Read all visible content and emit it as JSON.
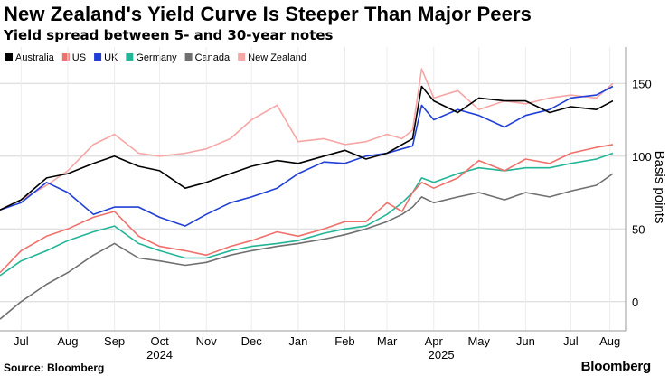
{
  "title": "New Zealand's Yield Curve Is Steeper Than Major Peers",
  "subtitle": "Yield spread between 5- and 30-year notes",
  "source": "Source: Bloomberg",
  "brand": "Bloomberg",
  "chart_data": {
    "type": "line",
    "ylabel": "Basis points",
    "ylim": [
      -20,
      175
    ],
    "yticks": [
      0,
      50,
      100,
      150
    ],
    "xlim": [
      "2024-07-01",
      "2025-08-15"
    ],
    "month_ticks": [
      {
        "label": "Jul",
        "date": "2024-07-15"
      },
      {
        "label": "Aug",
        "date": "2024-08-15"
      },
      {
        "label": "Sep",
        "date": "2024-09-15"
      },
      {
        "label": "Oct",
        "date": "2024-10-15"
      },
      {
        "label": "Nov",
        "date": "2024-11-15"
      },
      {
        "label": "Dec",
        "date": "2024-12-15"
      },
      {
        "label": "Jan",
        "date": "2025-01-15"
      },
      {
        "label": "Feb",
        "date": "2025-02-15"
      },
      {
        "label": "Mar",
        "date": "2025-03-15"
      },
      {
        "label": "Apr",
        "date": "2025-04-15"
      },
      {
        "label": "May",
        "date": "2025-05-15"
      },
      {
        "label": "Jun",
        "date": "2025-06-15"
      },
      {
        "label": "Jul",
        "date": "2025-07-15"
      },
      {
        "label": "Aug",
        "date": "2025-08-10"
      }
    ],
    "year_labels": [
      {
        "label": "2024",
        "date": "2024-10-15"
      },
      {
        "label": "2025",
        "date": "2025-04-20"
      }
    ],
    "legend_position": "top-left",
    "grid": true,
    "series": [
      {
        "name": "Australia",
        "color": "#000000",
        "x": [
          "2024-07-01",
          "2024-07-15",
          "2024-08-01",
          "2024-08-15",
          "2024-09-01",
          "2024-09-15",
          "2024-10-01",
          "2024-10-15",
          "2024-11-01",
          "2024-11-15",
          "2024-12-01",
          "2024-12-15",
          "2025-01-01",
          "2025-01-15",
          "2025-02-01",
          "2025-02-15",
          "2025-03-01",
          "2025-03-15",
          "2025-03-25",
          "2025-04-01",
          "2025-04-07",
          "2025-04-15",
          "2025-05-01",
          "2025-05-15",
          "2025-06-01",
          "2025-06-15",
          "2025-07-01",
          "2025-07-15",
          "2025-08-01",
          "2025-08-12"
        ],
        "values": [
          63,
          70,
          85,
          88,
          95,
          100,
          93,
          90,
          78,
          82,
          88,
          93,
          97,
          95,
          100,
          104,
          98,
          102,
          108,
          112,
          148,
          138,
          130,
          140,
          138,
          138,
          130,
          134,
          132,
          138
        ]
      },
      {
        "name": "US",
        "color": "#f0706b",
        "x": [
          "2024-07-01",
          "2024-07-15",
          "2024-08-01",
          "2024-08-15",
          "2024-09-01",
          "2024-09-15",
          "2024-10-01",
          "2024-10-15",
          "2024-11-01",
          "2024-11-15",
          "2024-12-01",
          "2024-12-15",
          "2025-01-01",
          "2025-01-15",
          "2025-02-01",
          "2025-02-15",
          "2025-03-01",
          "2025-03-15",
          "2025-03-25",
          "2025-04-01",
          "2025-04-07",
          "2025-04-15",
          "2025-05-01",
          "2025-05-15",
          "2025-06-01",
          "2025-06-15",
          "2025-07-01",
          "2025-07-15",
          "2025-08-01",
          "2025-08-12"
        ],
        "values": [
          20,
          35,
          45,
          50,
          58,
          62,
          45,
          38,
          35,
          32,
          38,
          42,
          48,
          45,
          50,
          55,
          55,
          68,
          62,
          75,
          82,
          78,
          85,
          97,
          90,
          98,
          95,
          102,
          106,
          108
        ]
      },
      {
        "name": "UK",
        "color": "#1f3fd6",
        "x": [
          "2024-07-01",
          "2024-07-15",
          "2024-08-01",
          "2024-08-15",
          "2024-09-01",
          "2024-09-15",
          "2024-10-01",
          "2024-10-15",
          "2024-11-01",
          "2024-11-15",
          "2024-12-01",
          "2024-12-15",
          "2025-01-01",
          "2025-01-15",
          "2025-02-01",
          "2025-02-15",
          "2025-03-01",
          "2025-03-15",
          "2025-03-25",
          "2025-04-01",
          "2025-04-07",
          "2025-04-15",
          "2025-05-01",
          "2025-05-15",
          "2025-06-01",
          "2025-06-15",
          "2025-07-01",
          "2025-07-15",
          "2025-08-01",
          "2025-08-12"
        ],
        "values": [
          63,
          68,
          82,
          75,
          60,
          65,
          65,
          58,
          52,
          60,
          68,
          72,
          78,
          88,
          96,
          95,
          100,
          102,
          105,
          107,
          135,
          125,
          132,
          128,
          120,
          128,
          132,
          140,
          142,
          148
        ]
      },
      {
        "name": "Germany",
        "color": "#22b597",
        "x": [
          "2024-07-01",
          "2024-07-15",
          "2024-08-01",
          "2024-08-15",
          "2024-09-01",
          "2024-09-15",
          "2024-10-01",
          "2024-10-15",
          "2024-11-01",
          "2024-11-15",
          "2024-12-01",
          "2024-12-15",
          "2025-01-01",
          "2025-01-15",
          "2025-02-01",
          "2025-02-15",
          "2025-03-01",
          "2025-03-15",
          "2025-03-25",
          "2025-04-01",
          "2025-04-07",
          "2025-04-15",
          "2025-05-01",
          "2025-05-15",
          "2025-06-01",
          "2025-06-15",
          "2025-07-01",
          "2025-07-15",
          "2025-08-01",
          "2025-08-12"
        ],
        "values": [
          18,
          28,
          35,
          42,
          48,
          52,
          40,
          35,
          30,
          30,
          35,
          38,
          40,
          42,
          47,
          50,
          52,
          60,
          68,
          75,
          85,
          82,
          88,
          92,
          90,
          92,
          92,
          95,
          98,
          102
        ]
      },
      {
        "name": "Canada",
        "color": "#707070",
        "x": [
          "2024-07-01",
          "2024-07-15",
          "2024-08-01",
          "2024-08-15",
          "2024-09-01",
          "2024-09-15",
          "2024-10-01",
          "2024-10-15",
          "2024-11-01",
          "2024-11-15",
          "2024-12-01",
          "2024-12-15",
          "2025-01-01",
          "2025-01-15",
          "2025-02-01",
          "2025-02-15",
          "2025-03-01",
          "2025-03-15",
          "2025-03-25",
          "2025-04-01",
          "2025-04-07",
          "2025-04-15",
          "2025-05-01",
          "2025-05-15",
          "2025-06-01",
          "2025-06-15",
          "2025-07-01",
          "2025-07-15",
          "2025-08-01",
          "2025-08-12"
        ],
        "values": [
          -12,
          0,
          12,
          20,
          32,
          40,
          30,
          28,
          25,
          27,
          32,
          35,
          38,
          40,
          43,
          46,
          50,
          55,
          60,
          65,
          72,
          68,
          72,
          75,
          70,
          75,
          72,
          76,
          80,
          88
        ]
      },
      {
        "name": "New Zealand",
        "color": "#f7a6a6",
        "x": [
          "2024-07-01",
          "2024-07-15",
          "2024-08-01",
          "2024-08-15",
          "2024-09-01",
          "2024-09-15",
          "2024-10-01",
          "2024-10-15",
          "2024-11-01",
          "2024-11-15",
          "2024-12-01",
          "2024-12-15",
          "2025-01-01",
          "2025-01-15",
          "2025-02-01",
          "2025-02-15",
          "2025-03-01",
          "2025-03-15",
          "2025-03-25",
          "2025-04-01",
          "2025-04-07",
          "2025-04-15",
          "2025-05-01",
          "2025-05-15",
          "2025-06-01",
          "2025-06-15",
          "2025-07-01",
          "2025-07-15",
          "2025-08-01",
          "2025-08-12"
        ],
        "values": [
          63,
          70,
          80,
          90,
          108,
          115,
          102,
          100,
          102,
          105,
          112,
          125,
          135,
          110,
          112,
          108,
          110,
          115,
          112,
          118,
          160,
          140,
          145,
          132,
          138,
          136,
          140,
          142,
          140,
          150
        ]
      }
    ]
  }
}
